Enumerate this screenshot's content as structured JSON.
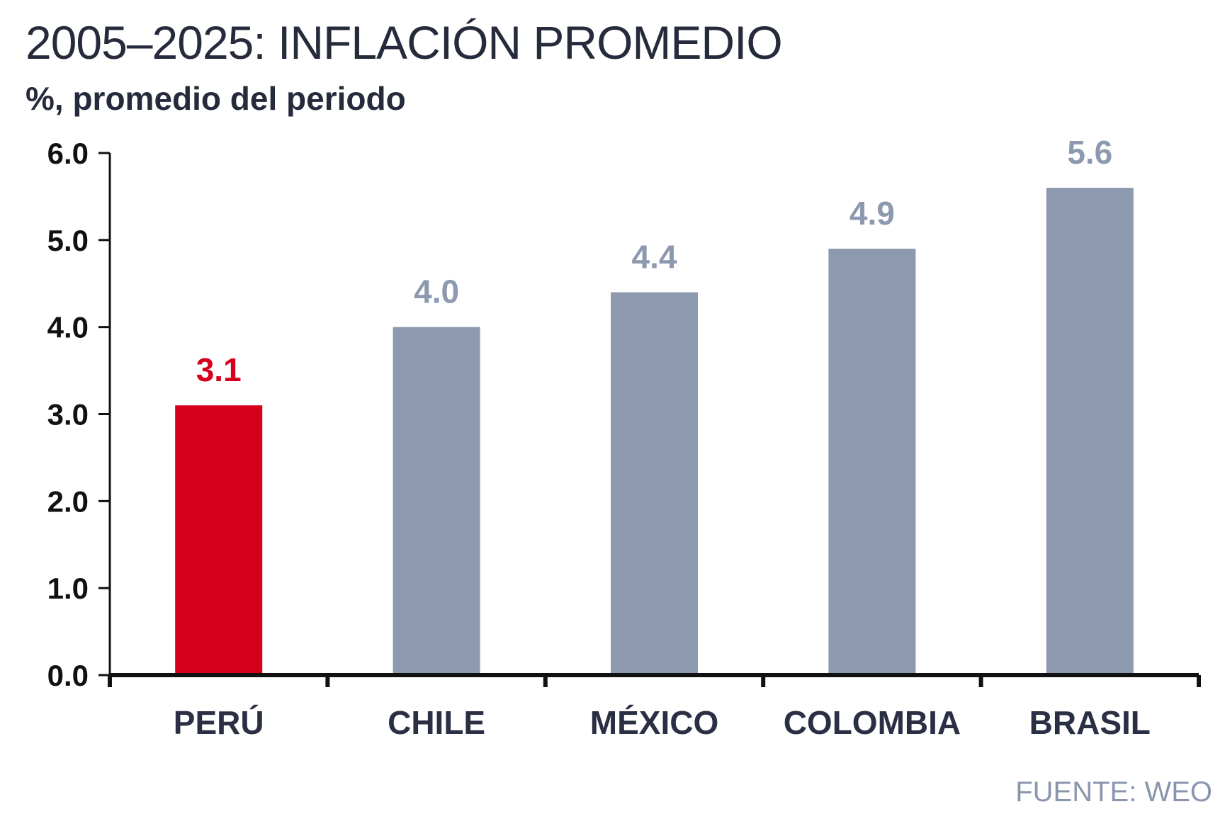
{
  "title": "2005–2025: INFLACIÓN PROMEDIO",
  "subtitle": "%, promedio del periodo",
  "source": "FUENTE: WEO",
  "colors": {
    "highlight": "#d6001c",
    "bar": "#8d99af",
    "axis": "#111111",
    "text": "#262b3c"
  },
  "chart_data": {
    "type": "bar",
    "categories": [
      "PERÚ",
      "CHILE",
      "MÉXICO",
      "COLOMBIA",
      "BRASIL"
    ],
    "values": [
      3.1,
      4.0,
      4.4,
      4.9,
      5.6
    ],
    "value_labels": [
      "3.1",
      "4.0",
      "4.4",
      "4.9",
      "5.6"
    ],
    "highlight_category": "PERÚ",
    "ylim": [
      0,
      6
    ],
    "yticks": [
      "0.0",
      "1.0",
      "2.0",
      "3.0",
      "4.0",
      "5.0",
      "6.0"
    ],
    "xlabel": "",
    "ylabel": "",
    "grid": false,
    "legend": "none"
  }
}
